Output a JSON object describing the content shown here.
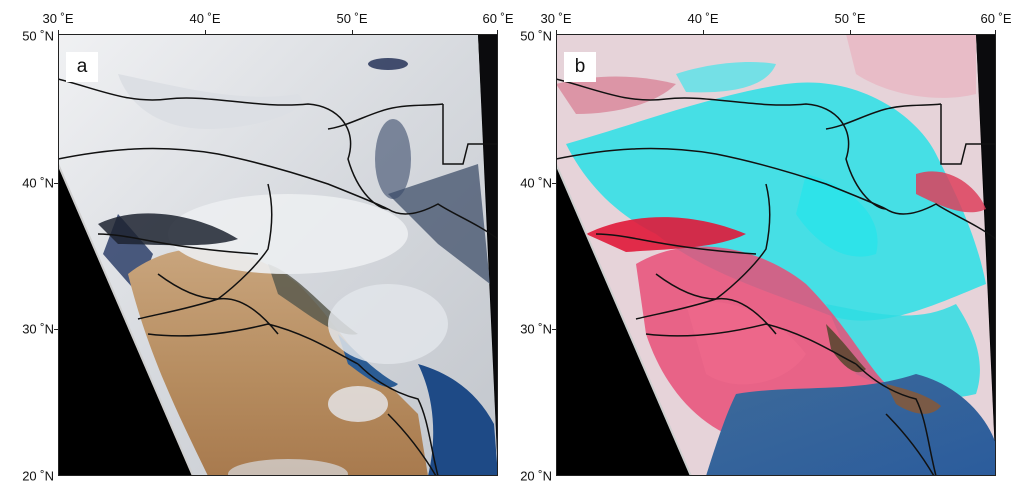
{
  "panels": [
    {
      "id": "a",
      "label": "a"
    },
    {
      "id": "b",
      "label": "b"
    }
  ],
  "axes": {
    "x_ticks": [
      "30 ˚E",
      "40 ˚E",
      "50 ˚E",
      "60 ˚E"
    ],
    "y_ticks": [
      "50 ˚N",
      "40 ˚N",
      "30 ˚N",
      "20 ˚N"
    ]
  },
  "colors": {
    "space_black": "#000000",
    "border_lines": "#111111",
    "desert": "#b8946a",
    "sea": "#1e4a86",
    "cloud_white": "#e6e8ec",
    "snow_cyan": "#28e6ea",
    "false_red": "#e8456a"
  }
}
